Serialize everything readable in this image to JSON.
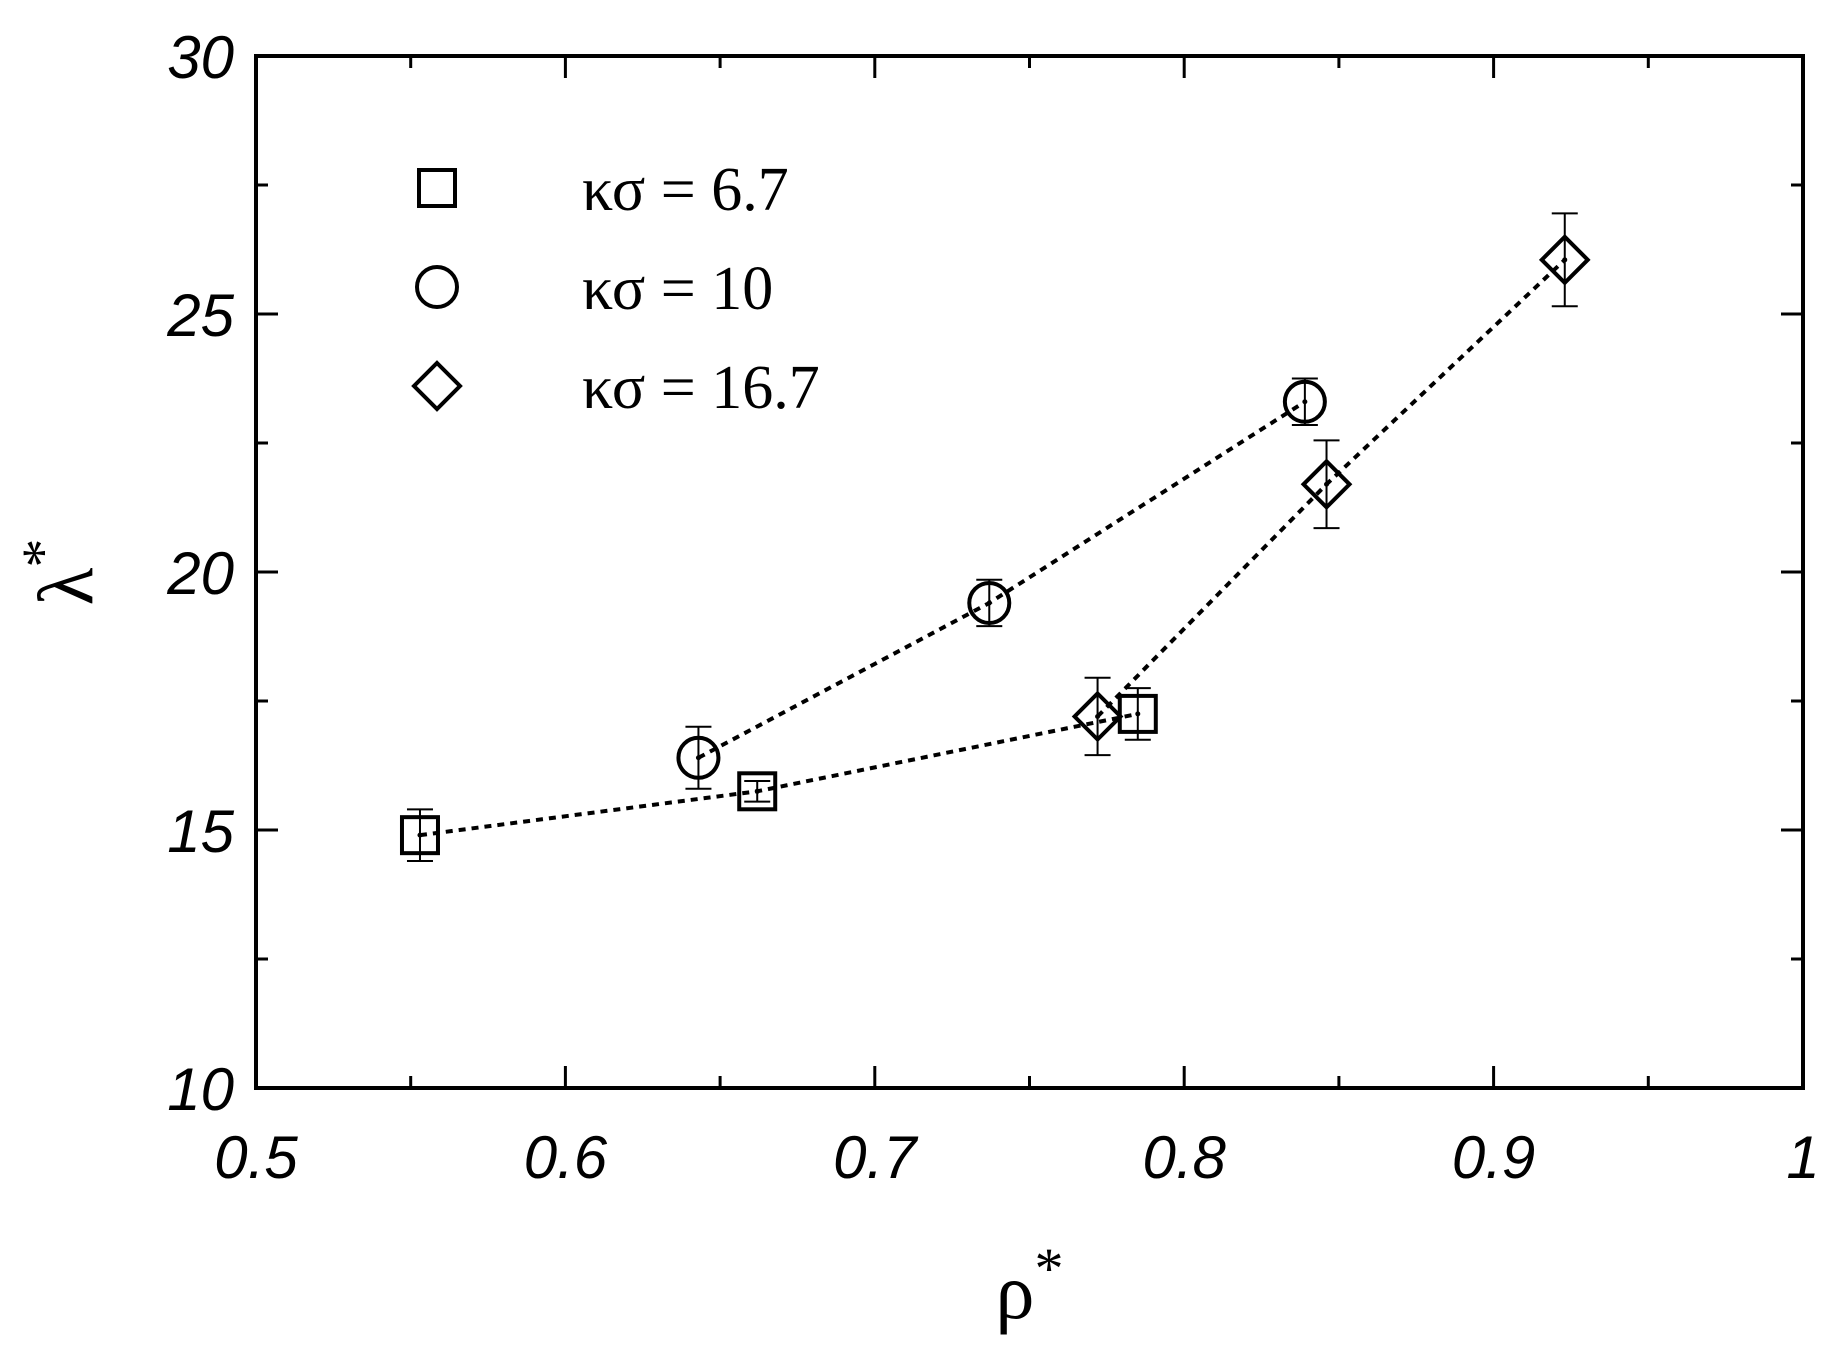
{
  "chart_data": {
    "type": "scatter",
    "title": "",
    "xlabel": "ρ",
    "xlabel_superscript": "*",
    "ylabel": "λ",
    "ylabel_superscript": "*",
    "xlim": [
      0.5,
      1.0
    ],
    "ylim": [
      10,
      30
    ],
    "x_ticks": [
      0.5,
      0.6,
      0.7,
      0.8,
      0.9,
      1.0
    ],
    "x_tick_labels": [
      "0.5",
      "0.6",
      "0.7",
      "0.8",
      "0.9",
      "1"
    ],
    "x_minor_ticks": [
      0.55,
      0.65,
      0.75,
      0.85,
      0.95
    ],
    "y_ticks": [
      10,
      15,
      20,
      25,
      30
    ],
    "y_tick_labels": [
      "10",
      "15",
      "20",
      "25",
      "30"
    ],
    "y_minor_ticks": [
      12.5,
      17.5,
      22.5,
      27.5
    ],
    "grid": false,
    "legend_position": "top-left",
    "line_style": "dotted",
    "series": [
      {
        "name": "κσ = 6.7",
        "marker": "square",
        "points": [
          {
            "x": 0.553,
            "y": 14.9,
            "err": 0.5
          },
          {
            "x": 0.662,
            "y": 15.75,
            "err": 0.2
          },
          {
            "x": 0.785,
            "y": 17.25,
            "err": 0.5
          }
        ]
      },
      {
        "name": "κσ = 10",
        "marker": "circle",
        "points": [
          {
            "x": 0.643,
            "y": 16.4,
            "err": 0.6
          },
          {
            "x": 0.737,
            "y": 19.4,
            "err": 0.45
          },
          {
            "x": 0.839,
            "y": 23.3,
            "err": 0.45
          }
        ]
      },
      {
        "name": "κσ = 16.7",
        "marker": "diamond",
        "points": [
          {
            "x": 0.772,
            "y": 17.2,
            "err": 0.75
          },
          {
            "x": 0.846,
            "y": 21.7,
            "err": 0.85
          },
          {
            "x": 0.923,
            "y": 26.05,
            "err": 0.9
          }
        ]
      }
    ]
  }
}
